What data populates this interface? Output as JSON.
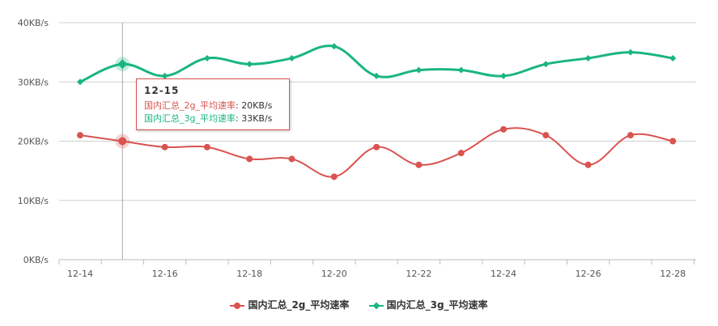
{
  "chart_data": {
    "type": "line",
    "categories": [
      "12-14",
      "12-15",
      "12-16",
      "12-17",
      "12-18",
      "12-19",
      "12-20",
      "12-21",
      "12-22",
      "12-23",
      "12-24",
      "12-25",
      "12-26",
      "12-27",
      "12-28"
    ],
    "x_tick_labels": [
      "12-14",
      "12-16",
      "12-18",
      "12-20",
      "12-22",
      "12-24",
      "12-26",
      "12-28"
    ],
    "y_tick_labels": [
      "0KB/s",
      "10KB/s",
      "20KB/s",
      "30KB/s",
      "40KB/s"
    ],
    "ylim": [
      0,
      40
    ],
    "grid": true,
    "legend_position": "bottom",
    "series": [
      {
        "name": "国内汇总_2g_平均速率",
        "color": "#d9534f",
        "marker": "circle",
        "values": [
          21,
          20,
          19,
          19,
          17,
          17,
          14,
          19,
          16,
          18,
          22,
          21,
          16,
          21,
          20
        ]
      },
      {
        "name": "国内汇总_3g_平均速率",
        "color": "#1ab583",
        "marker": "diamond",
        "values": [
          30,
          33,
          31,
          34,
          33,
          34,
          36,
          31,
          32,
          32,
          31,
          33,
          34,
          35,
          34
        ]
      }
    ]
  },
  "tooltip": {
    "title": "12-15",
    "rows": [
      {
        "label": "国内汇总_2g_平均速率",
        "value": "20KB/s",
        "color": "#d9534f"
      },
      {
        "label": "国内汇总_3g_平均速率",
        "value": "33KB/s",
        "color": "#1ab583"
      }
    ]
  },
  "legend": {
    "items": [
      {
        "label": "国内汇总_2g_平均速率",
        "color": "#d9534f"
      },
      {
        "label": "国内汇总_3g_平均速率",
        "color": "#1ab583"
      }
    ]
  }
}
